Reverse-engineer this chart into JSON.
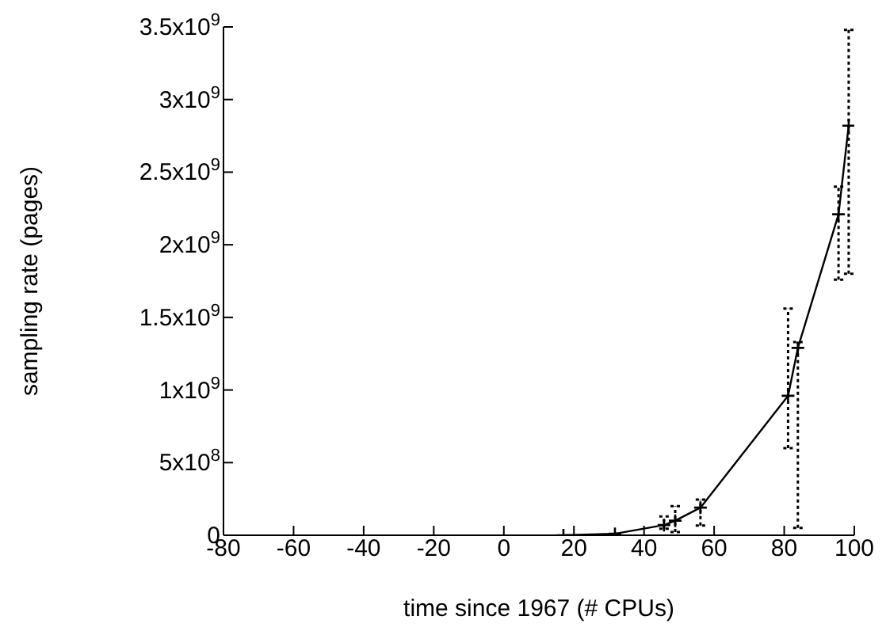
{
  "chart_data": {
    "type": "line",
    "xlabel": "time since 1967 (# CPUs)",
    "ylabel": "sampling rate (pages)",
    "x": [
      17,
      31.7,
      45.7,
      48.9,
      56.1,
      81.1,
      83.9,
      95.5,
      98.4
    ],
    "series": [
      {
        "color": "#000000",
        "values": [
          0,
          10000000.0,
          70000000.0,
          100000000.0,
          190000000.0,
          960000000.0,
          1290000000.0,
          2210000000.0,
          2820000000.0
        ],
        "errors": [
          null,
          null,
          [
            45000000.0,
            130000000.0
          ],
          [
            22000000.0,
            200000000.0
          ],
          [
            67000000.0,
            246000000.0
          ],
          [
            600000000.0,
            1560000000.0
          ],
          [
            50000000.0,
            1330000000.0
          ],
          [
            1760000000.0,
            2400000000.0
          ],
          [
            1800000000.0,
            3480000000.0
          ]
        ]
      }
    ],
    "xlim": [
      -80,
      100
    ],
    "xticks": [
      -80,
      -60,
      -40,
      -20,
      0,
      20,
      40,
      60,
      80,
      100
    ],
    "ylim": [
      0,
      3500000000.0
    ],
    "yticks": [
      0,
      {
        "value": 500000000.0,
        "label": "5x10$^{8}$"
      },
      {
        "value": 1000000000.0,
        "label": "1x10$^{9}$"
      },
      {
        "value": 1500000000.0,
        "label": "1.5x10$^{9}$"
      },
      {
        "value": 2000000000.0,
        "label": "2x10$^{9}$"
      },
      {
        "value": 2500000000.0,
        "label": "2.5x10$^{9}$"
      },
      {
        "value": 3000000000.0,
        "label": "3x10$^{9}$"
      },
      {
        "value": 3500000000.0,
        "label": "3.5x10$^{9}$"
      }
    ],
    "marker": "cross",
    "line_style": "solid",
    "grid": false,
    "legend": false
  }
}
